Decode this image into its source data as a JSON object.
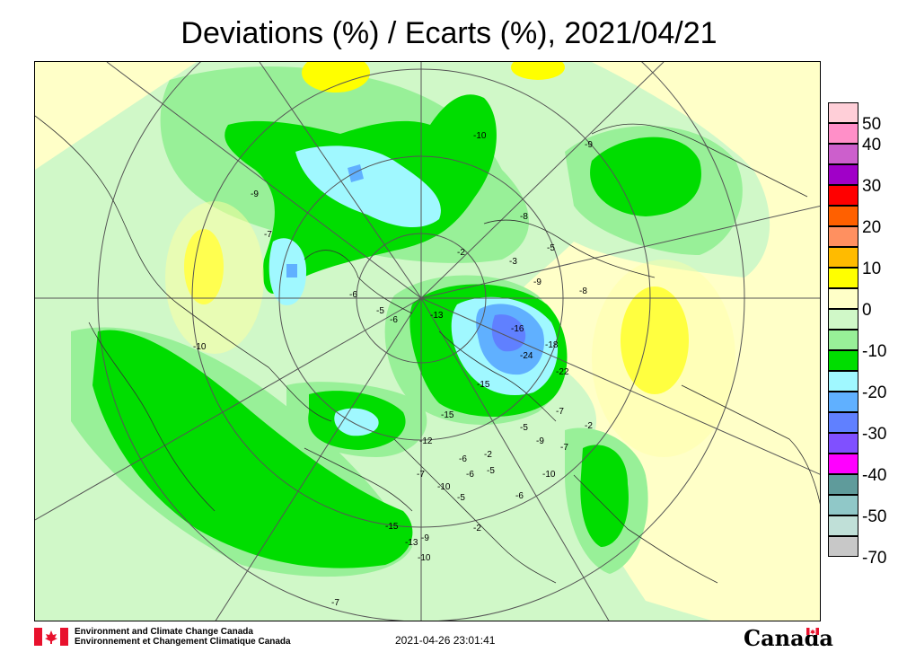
{
  "title": "Deviations (%) / Ecarts (%), 2021/04/21",
  "legend": {
    "items": [
      {
        "label": "50",
        "color": "#ffcfd8"
      },
      {
        "label": "40",
        "color": "#ff8fc8"
      },
      {
        "label": "",
        "color": "#cc5fcc"
      },
      {
        "label": "30",
        "color": "#a000c8"
      },
      {
        "label": "",
        "color": "#ff0000"
      },
      {
        "label": "20",
        "color": "#ff6000"
      },
      {
        "label": "",
        "color": "#ff9060"
      },
      {
        "label": "10",
        "color": "#ffbb00"
      },
      {
        "label": "",
        "color": "#ffff00"
      },
      {
        "label": "0",
        "color": "#ffffc8"
      },
      {
        "label": "",
        "color": "#d0f8c8"
      },
      {
        "label": "-10",
        "color": "#98f098"
      },
      {
        "label": "",
        "color": "#00dd00"
      },
      {
        "label": "-20",
        "color": "#a0f8ff"
      },
      {
        "label": "",
        "color": "#60b0ff"
      },
      {
        "label": "-30",
        "color": "#6080ff"
      },
      {
        "label": "",
        "color": "#8050ff"
      },
      {
        "label": "-40",
        "color": "#ff00ff"
      },
      {
        "label": "",
        "color": "#5f9b9b"
      },
      {
        "label": "-50",
        "color": "#90c8c8"
      },
      {
        "label": "",
        "color": "#c0e0d8"
      },
      {
        "label": "-70",
        "color": "#c8c8c8"
      }
    ]
  },
  "footer": {
    "org_en": "Environment and Climate Change Canada",
    "org_fr": "Environnement et Changement Climatique Canada",
    "timestamp": "2021-04-26 23:01:41",
    "wordmark": "Canada"
  },
  "contour_labels": [
    "-10",
    "-9",
    "-9",
    "-8",
    "-3",
    "-2",
    "-5",
    "-7",
    "-6",
    "-10",
    "-5",
    "-8",
    "-9",
    "-6",
    "-13",
    "-15",
    "-18",
    "-24",
    "-22",
    "-16",
    "-15",
    "-7",
    "-12",
    "-5",
    "-9",
    "-7",
    "-2",
    "-6",
    "-7",
    "-10",
    "-6",
    "-5",
    "-5",
    "-15",
    "-13",
    "-9",
    "-10",
    "-2",
    "-6",
    "-10",
    "-7",
    "-2"
  ]
}
